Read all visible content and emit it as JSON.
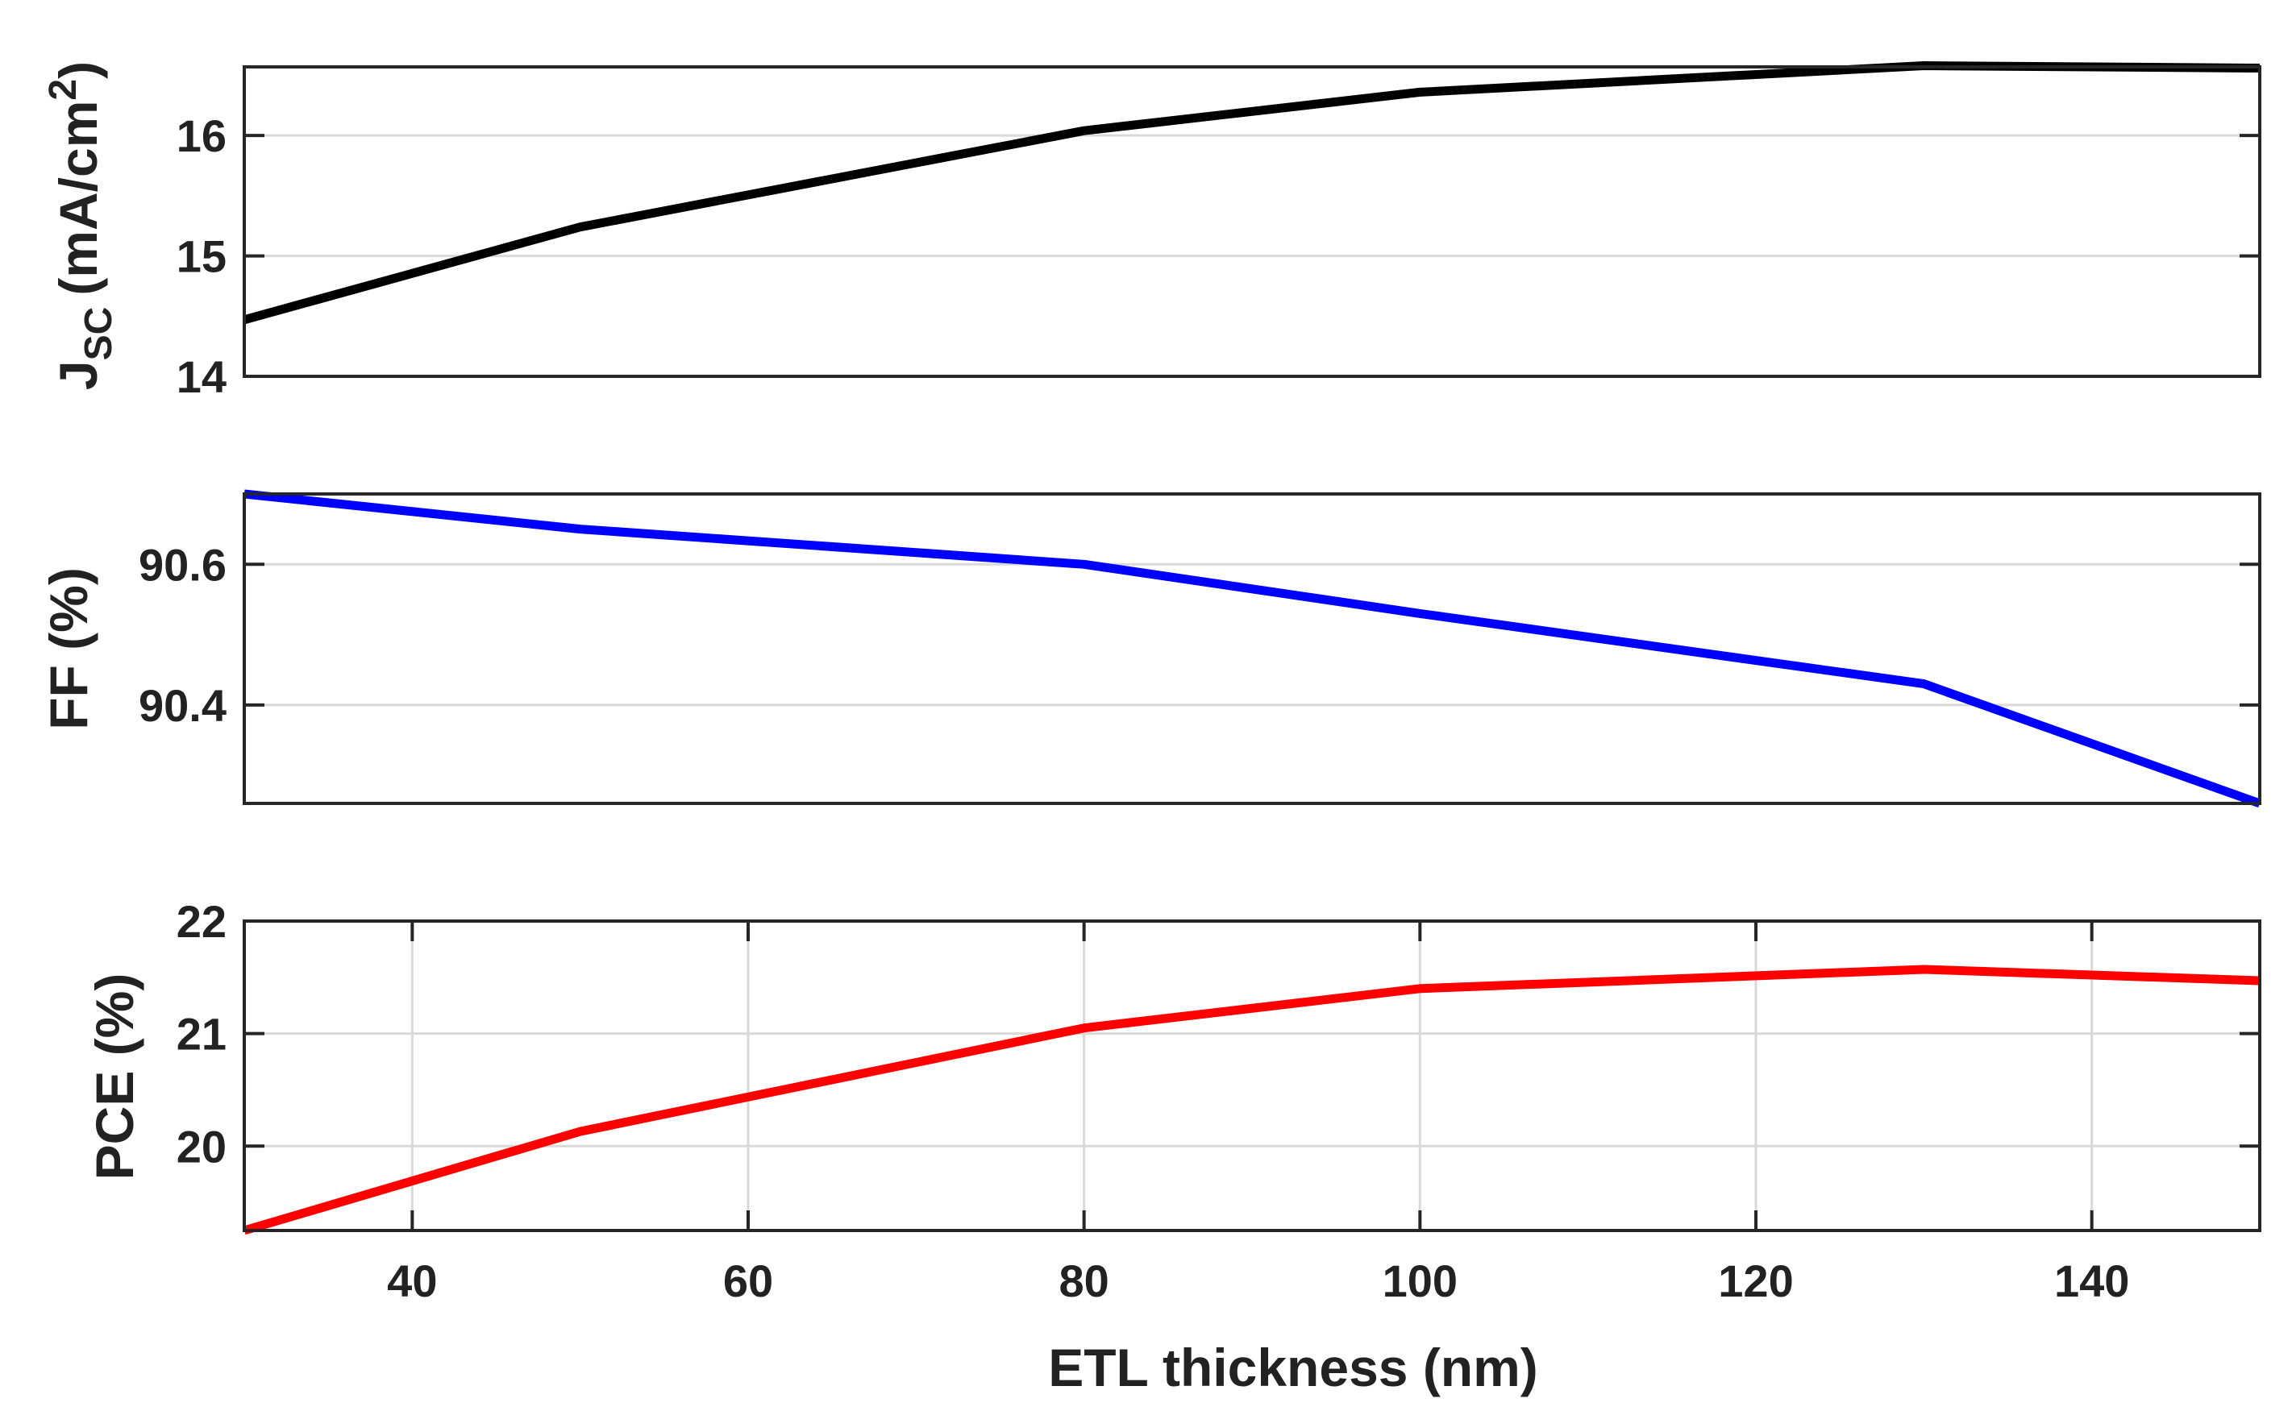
{
  "chart_data": [
    {
      "type": "line",
      "id": "jsc",
      "ylabel": "J",
      "ylabel_sub": "SC",
      "ylabel_unit": "(mA/cm",
      "ylabel_sup": "2",
      "ylabel_close": ")",
      "xlim": [
        30,
        150
      ],
      "ylim": [
        14,
        16.57
      ],
      "yticks": [
        14,
        15,
        16
      ],
      "ytick_labels": [
        "14",
        "15",
        "16"
      ],
      "grid": "y",
      "color": "#000000",
      "series": [
        {
          "name": "Jsc",
          "x": [
            30,
            50,
            80,
            100,
            130,
            150
          ],
          "values": [
            14.47,
            15.24,
            16.04,
            16.36,
            16.58,
            16.56
          ]
        }
      ]
    },
    {
      "type": "line",
      "id": "ff",
      "ylabel": "FF (%)",
      "xlim": [
        30,
        150
      ],
      "ylim": [
        90.26,
        90.7
      ],
      "yticks": [
        90.4,
        90.6
      ],
      "ytick_labels": [
        "90.4",
        "90.6"
      ],
      "grid": "y",
      "color": "#0000ff",
      "series": [
        {
          "name": "FF",
          "x": [
            30,
            50,
            80,
            100,
            130,
            150
          ],
          "values": [
            90.7,
            90.65,
            90.6,
            90.53,
            90.43,
            90.26
          ]
        }
      ]
    },
    {
      "type": "line",
      "id": "pce",
      "ylabel": "PCE (%)",
      "xlabel": "ETL thickness (nm)",
      "xlim": [
        30,
        150
      ],
      "ylim": [
        19.25,
        22
      ],
      "yticks": [
        20,
        21,
        22
      ],
      "ytick_labels": [
        "20",
        "21",
        "22"
      ],
      "xticks": [
        40,
        60,
        80,
        100,
        120,
        140
      ],
      "xtick_labels": [
        "40",
        "60",
        "80",
        "100",
        "120",
        "140"
      ],
      "grid": "both",
      "color": "#ff0000",
      "series": [
        {
          "name": "PCE",
          "x": [
            30,
            50,
            80,
            100,
            130,
            150
          ],
          "values": [
            19.25,
            20.13,
            21.05,
            21.4,
            21.57,
            21.47
          ]
        }
      ]
    }
  ]
}
